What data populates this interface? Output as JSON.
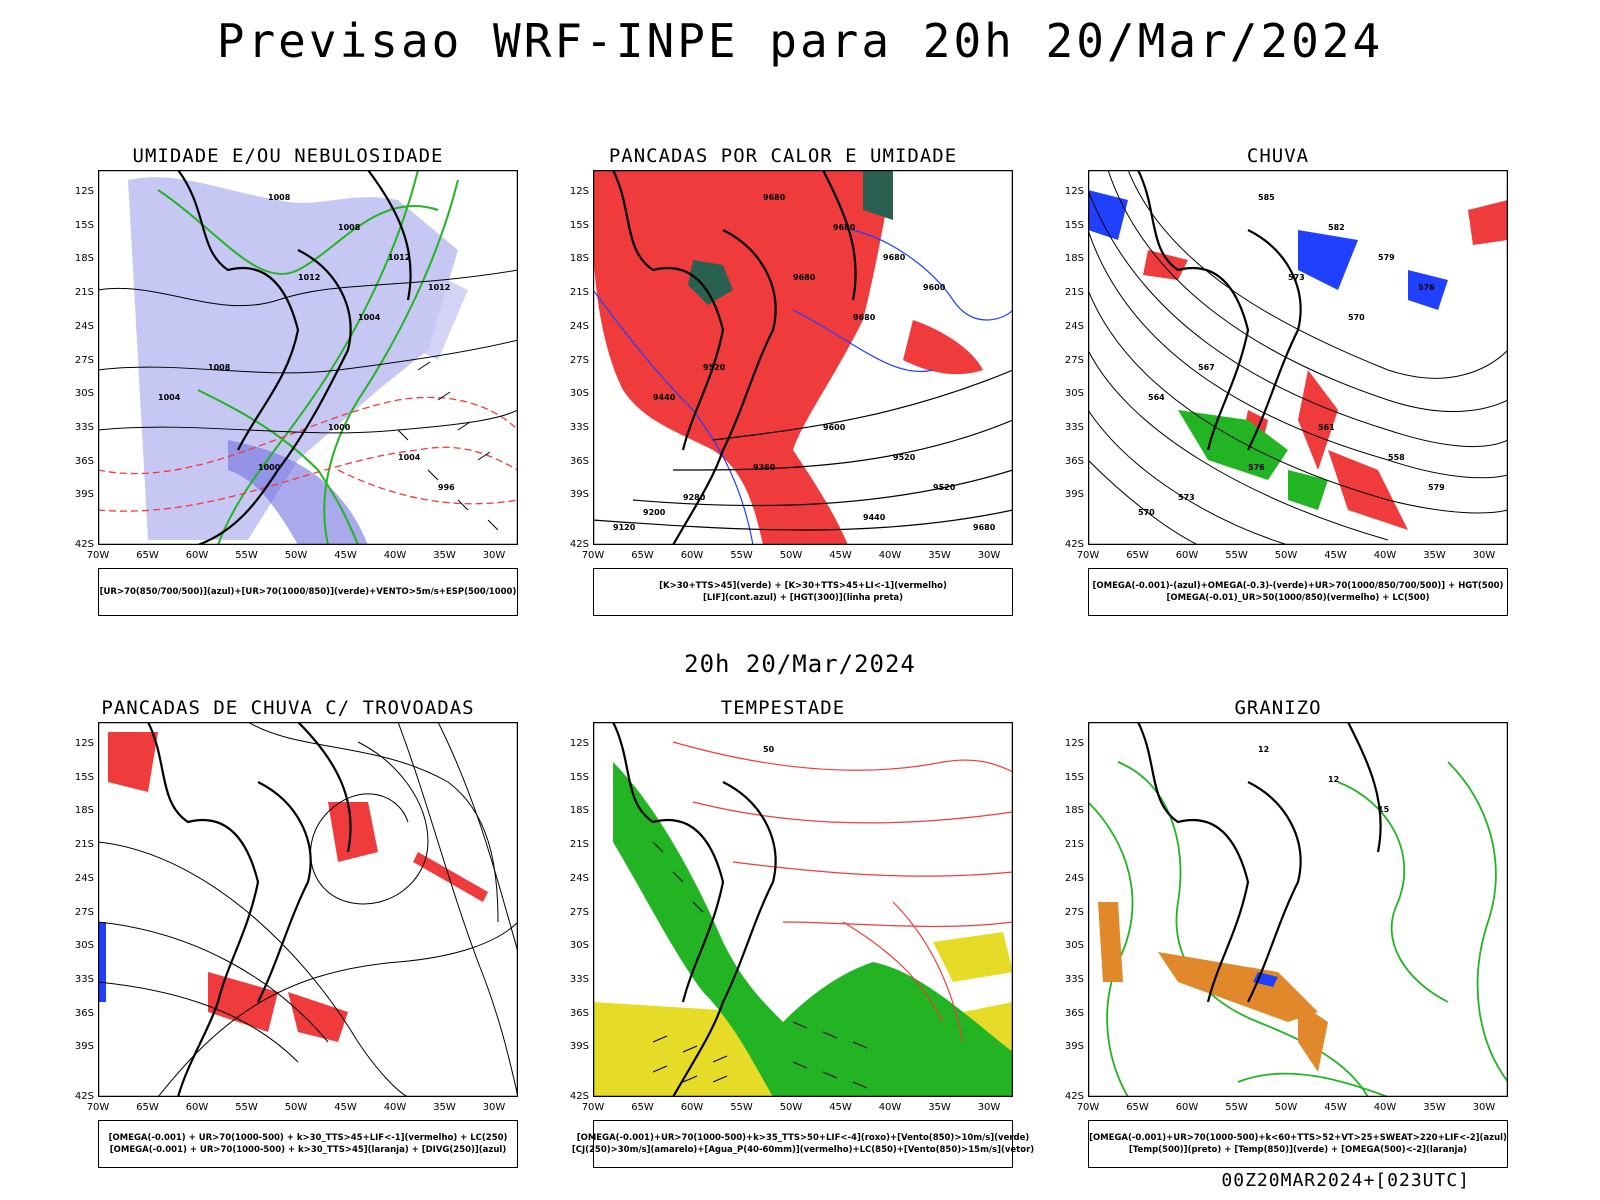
{
  "header": {
    "title": "Previsao WRF-INPE  para 20h 20/Mar/2024"
  },
  "middle_title": "20h 20/Mar/2024",
  "footer": {
    "stamp": "00Z20MAR2024+[023UTC]"
  },
  "axes": {
    "lat_labels": [
      "12S",
      "15S",
      "18S",
      "21S",
      "24S",
      "27S",
      "30S",
      "33S",
      "36S",
      "39S",
      "42S"
    ],
    "lon_labels": [
      "70W",
      "65W",
      "60W",
      "55W",
      "50W",
      "45W",
      "40W",
      "35W",
      "30W"
    ]
  },
  "colors": {
    "red": "#ef3b3b",
    "green": "#22b422",
    "blue": "#2040ff",
    "lavender": "#b4b4f0",
    "yellow": "#e6dc28",
    "orange": "#e0882a",
    "darkgreen": "#2a6050",
    "black": "#000000"
  },
  "panels": [
    {
      "title": "UMIDADE E/OU NEBULOSIDADE",
      "legend": [
        "[UR>70(850/700/500)](azul)+[UR>70(1000/850)](verde)+VENTO>5m/s+ESP(500/1000)"
      ],
      "contour_labels": [
        "1008",
        "1008",
        "1012",
        "1012",
        "1012",
        "1004",
        "1008",
        "1004",
        "1000",
        "1004",
        "1000",
        "996"
      ]
    },
    {
      "title": "PANCADAS POR CALOR E UMIDADE",
      "legend": [
        "[K>30+TTS>45](verde) + [K>30+TTS>45+LI<-1](vermelho)",
        "[LIF](cont.azul) + [HGT(300)](linha preta)"
      ],
      "contour_labels": [
        "9680",
        "9680",
        "9680",
        "9600",
        "9680",
        "9680",
        "9520",
        "9440",
        "9600",
        "9520",
        "9360",
        "9520",
        "9280",
        "9200",
        "9440",
        "9120",
        "9680"
      ]
    },
    {
      "title": "CHUVA",
      "legend": [
        "[OMEGA(-0.001)-(azul)+OMEGA(-0.3)-(verde)+UR>70(1000/850/700/500)] + HGT(500)",
        "[OMEGA(-0.01)_UR>50(1000/850)(vermelho) + LC(500)"
      ],
      "contour_labels": [
        "585",
        "582",
        "579",
        "576",
        "573",
        "570",
        "567",
        "564",
        "561",
        "558",
        "576",
        "579",
        "573",
        "570"
      ]
    },
    {
      "title": "PANCADAS DE CHUVA C/ TROVOADAS",
      "legend": [
        "[OMEGA(-0.001) + UR>70(1000-500) + k>30_TTS>45+LIF<-1](vermelho) + LC(250)",
        "[OMEGA(-0.001) + UR>70(1000-500) + k>30_TTS>45](laranja) + [DIVG(250)](azul)"
      ],
      "contour_labels": []
    },
    {
      "title": "TEMPESTADE",
      "legend": [
        "[OMEGA(-0.001)+UR>70(1000-500)+k>35_TTS>50+LIF<-4](roxo)+[Vento(850)>10m/s](verde)",
        "[CJ(250)>30m/s](amarelo)+[Agua_P(40-60mm)](vermelho)+LC(850)+[Vento(850)>15m/s](vetor)"
      ],
      "contour_labels": [
        "50"
      ]
    },
    {
      "title": "GRANIZO",
      "legend": [
        "[OMEGA(-0.001)+UR>70(1000-500)+k<60+TTS>52+VT>25+SWEAT>220+LIF<-2](azul)",
        "[Temp(500)](preto) + [Temp(850)](verde) + [OMEGA(500)<-2](laranja)"
      ],
      "contour_labels": [
        "12",
        "12",
        "15"
      ]
    }
  ]
}
